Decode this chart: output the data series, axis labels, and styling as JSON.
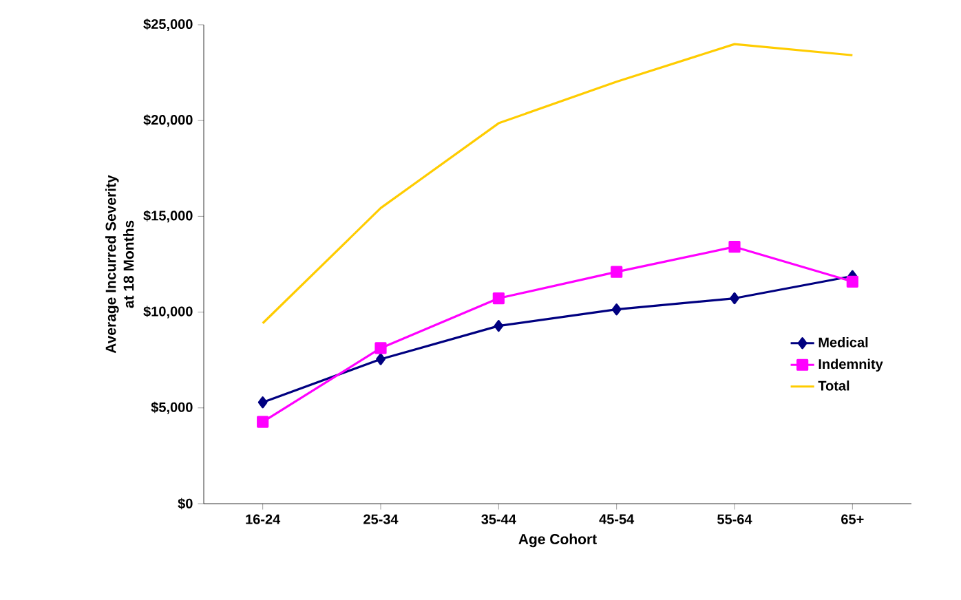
{
  "chart_data": {
    "type": "line",
    "xlabel": "Age Cohort",
    "ylabel": "Average  Incurred Severity\nat 18 Months",
    "categories": [
      "16-24",
      "25-34",
      "35-44",
      "45-54",
      "55-64",
      "65+"
    ],
    "series": [
      {
        "name": "Medical",
        "color": "#000080",
        "marker": "diamond",
        "values": [
          5290,
          7540,
          9280,
          10140,
          10720,
          11880
        ]
      },
      {
        "name": "Indemnity",
        "color": "#ff00ff",
        "marker": "square",
        "values": [
          4270,
          8120,
          10720,
          12100,
          13410,
          11590
        ]
      },
      {
        "name": "Total",
        "color": "#ffcc00",
        "marker": "none",
        "values": [
          9420,
          15430,
          19860,
          22030,
          23990,
          23410
        ]
      }
    ],
    "ylim": [
      0,
      25000
    ],
    "yticks": [
      {
        "value": 0,
        "label": "$0"
      },
      {
        "value": 5000,
        "label": "$5,000"
      },
      {
        "value": 10000,
        "label": "$10,000"
      },
      {
        "value": 15000,
        "label": "$15,000"
      },
      {
        "value": 20000,
        "label": "$20,000"
      },
      {
        "value": 25000,
        "label": "$25,000"
      }
    ],
    "grid": false,
    "legend": "bottom right",
    "line_style": "solid"
  }
}
